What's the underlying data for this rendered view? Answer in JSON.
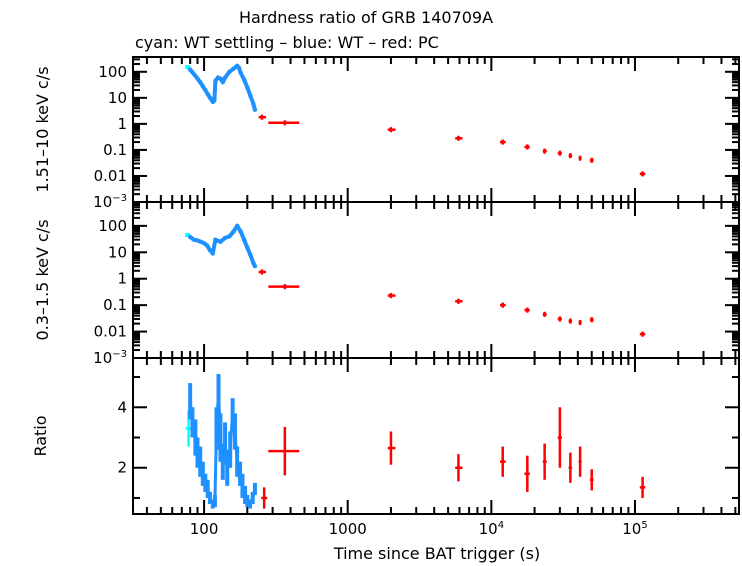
{
  "chart_data": {
    "type": "scatter",
    "title": "Hardness ratio of GRB 140709A",
    "subtitle": "cyan: WT settling – blue: WT – red: PC",
    "xlabel": "Time since BAT trigger (s)",
    "x_scale": "log",
    "xlim": [
      32,
      530000
    ],
    "x_ticks": [
      {
        "v": 100,
        "label": "100"
      },
      {
        "v": 1000,
        "label": "1000"
      },
      {
        "v": 10000,
        "label": "10",
        "exp": "4"
      },
      {
        "v": 100000,
        "label": "10",
        "exp": "5"
      }
    ],
    "colors": {
      "wt_settling": "#00ffff",
      "wt": "#1e90ff",
      "pc": "#ff0000"
    },
    "panels": [
      {
        "id": "hard",
        "ylabel": "1.51–10 keV c/s",
        "y_scale": "log",
        "ylim": [
          0.001,
          370
        ],
        "y_ticks": [
          {
            "v": 100,
            "label": "100"
          },
          {
            "v": 10,
            "label": "10"
          },
          {
            "v": 1,
            "label": "1"
          },
          {
            "v": 0.1,
            "label": "0.1"
          },
          {
            "v": 0.01,
            "label": "0.01"
          },
          {
            "v": 0.001,
            "label": "10",
            "exp": "−3"
          }
        ],
        "wt_settling": [
          [
            77,
            150
          ]
        ],
        "wt": [
          [
            80,
            120
          ],
          [
            83,
            95
          ],
          [
            86,
            75
          ],
          [
            90,
            55
          ],
          [
            94,
            40
          ],
          [
            98,
            28
          ],
          [
            102,
            20
          ],
          [
            106,
            14
          ],
          [
            110,
            10
          ],
          [
            115,
            7
          ],
          [
            118,
            8
          ],
          [
            120,
            45
          ],
          [
            125,
            60
          ],
          [
            130,
            55
          ],
          [
            135,
            40
          ],
          [
            140,
            60
          ],
          [
            150,
            100
          ],
          [
            160,
            130
          ],
          [
            170,
            170
          ],
          [
            175,
            140
          ],
          [
            180,
            90
          ],
          [
            190,
            50
          ],
          [
            200,
            25
          ],
          [
            210,
            12
          ],
          [
            220,
            6
          ],
          [
            226,
            3.5
          ]
        ],
        "pc": [
          [
            253,
            1.8,
            240,
            270
          ],
          [
            365,
            1.1,
            280,
            460
          ],
          [
            2000,
            0.6,
            1900,
            2150
          ],
          [
            5900,
            0.28,
            5600,
            6300
          ],
          [
            12000,
            0.2,
            11500,
            12600
          ],
          [
            17800,
            0.13,
            17000,
            18500
          ],
          [
            23500,
            0.09,
            22800,
            24300
          ],
          [
            30000,
            0.075,
            29000,
            31000
          ],
          [
            35500,
            0.06,
            34500,
            36500
          ],
          [
            41500,
            0.048,
            40500,
            42500
          ],
          [
            50000,
            0.04,
            48500,
            51500
          ],
          [
            113000,
            0.012,
            108000,
            118000
          ]
        ]
      },
      {
        "id": "soft",
        "ylabel": "0.3–1.5 keV c/s",
        "y_scale": "log",
        "ylim": [
          0.001,
          800
        ],
        "y_ticks": [
          {
            "v": 100,
            "label": "100"
          },
          {
            "v": 10,
            "label": "10"
          },
          {
            "v": 1,
            "label": "1"
          },
          {
            "v": 0.1,
            "label": "0.1"
          },
          {
            "v": 0.01,
            "label": "0.01"
          },
          {
            "v": 0.001,
            "label": "10",
            "exp": "−3"
          }
        ],
        "wt_settling": [
          [
            77,
            45
          ]
        ],
        "wt": [
          [
            80,
            38
          ],
          [
            85,
            30
          ],
          [
            90,
            28
          ],
          [
            95,
            25
          ],
          [
            100,
            22
          ],
          [
            105,
            18
          ],
          [
            110,
            12
          ],
          [
            115,
            9
          ],
          [
            120,
            30
          ],
          [
            130,
            25
          ],
          [
            140,
            35
          ],
          [
            150,
            40
          ],
          [
            160,
            60
          ],
          [
            170,
            100
          ],
          [
            180,
            60
          ],
          [
            190,
            30
          ],
          [
            200,
            15
          ],
          [
            210,
            8
          ],
          [
            220,
            4
          ],
          [
            226,
            3
          ]
        ],
        "pc": [
          [
            253,
            1.8,
            240,
            270
          ],
          [
            365,
            0.5,
            280,
            460
          ],
          [
            2000,
            0.23,
            1900,
            2150
          ],
          [
            5900,
            0.14,
            5600,
            6300
          ],
          [
            12000,
            0.1,
            11500,
            12600
          ],
          [
            17800,
            0.065,
            17000,
            18500
          ],
          [
            23500,
            0.045,
            22800,
            24300
          ],
          [
            30000,
            0.03,
            29000,
            31000
          ],
          [
            35500,
            0.025,
            34500,
            36500
          ],
          [
            41500,
            0.022,
            40500,
            42500
          ],
          [
            50000,
            0.028,
            48500,
            51500
          ],
          [
            113000,
            0.008,
            108000,
            118000
          ]
        ]
      },
      {
        "id": "ratio",
        "ylabel": "Ratio",
        "y_scale": "linear",
        "ylim": [
          0.47,
          5.63
        ],
        "y_ticks": [
          {
            "v": 4,
            "label": "4"
          },
          {
            "v": 2,
            "label": "2"
          }
        ],
        "wt_settling": [
          [
            78,
            3.3,
            0.6
          ]
        ],
        "wt": [
          [
            80,
            4.2,
            0.6
          ],
          [
            83,
            3.5,
            0.5
          ],
          [
            87,
            3.0,
            0.6
          ],
          [
            90,
            2.5,
            0.5
          ],
          [
            94,
            2.2,
            0.5
          ],
          [
            98,
            1.8,
            0.4
          ],
          [
            102,
            1.5,
            0.3
          ],
          [
            106,
            1.3,
            0.3
          ],
          [
            110,
            1.0,
            0.2
          ],
          [
            115,
            0.8,
            0.15
          ],
          [
            119,
            0.9,
            0.2
          ],
          [
            122,
            3.3,
            0.7
          ],
          [
            126,
            4.5,
            0.6
          ],
          [
            130,
            3.0,
            0.8
          ],
          [
            135,
            2.2,
            0.6
          ],
          [
            140,
            2.8,
            0.7
          ],
          [
            145,
            2.0,
            0.6
          ],
          [
            152,
            2.6,
            0.6
          ],
          [
            158,
            3.8,
            0.5
          ],
          [
            164,
            3.2,
            0.6
          ],
          [
            170,
            2.2,
            0.5
          ],
          [
            178,
            1.8,
            0.4
          ],
          [
            185,
            1.4,
            0.4
          ],
          [
            193,
            1.1,
            0.3
          ],
          [
            200,
            0.9,
            0.2
          ],
          [
            209,
            0.8,
            0.15
          ],
          [
            218,
            1.0,
            0.2
          ],
          [
            226,
            1.3,
            0.2
          ]
        ],
        "pc": [
          [
            262,
            1.0,
            0.35,
            250,
            275
          ],
          [
            365,
            2.55,
            0.8,
            280,
            460
          ],
          [
            2000,
            2.65,
            0.55,
            1900,
            2150
          ],
          [
            5900,
            2.0,
            0.45,
            5600,
            6300
          ],
          [
            12000,
            2.2,
            0.5,
            11500,
            12600
          ],
          [
            17800,
            1.8,
            0.6,
            17000,
            18500
          ],
          [
            23500,
            2.2,
            0.6,
            22800,
            24300
          ],
          [
            30000,
            3.0,
            1.0,
            29000,
            31000
          ],
          [
            35500,
            2.0,
            0.5,
            34500,
            36500
          ],
          [
            41500,
            2.2,
            0.5,
            40500,
            42500
          ],
          [
            50000,
            1.6,
            0.35,
            48500,
            51500
          ],
          [
            113000,
            1.35,
            0.35,
            108000,
            118000
          ]
        ]
      }
    ]
  }
}
